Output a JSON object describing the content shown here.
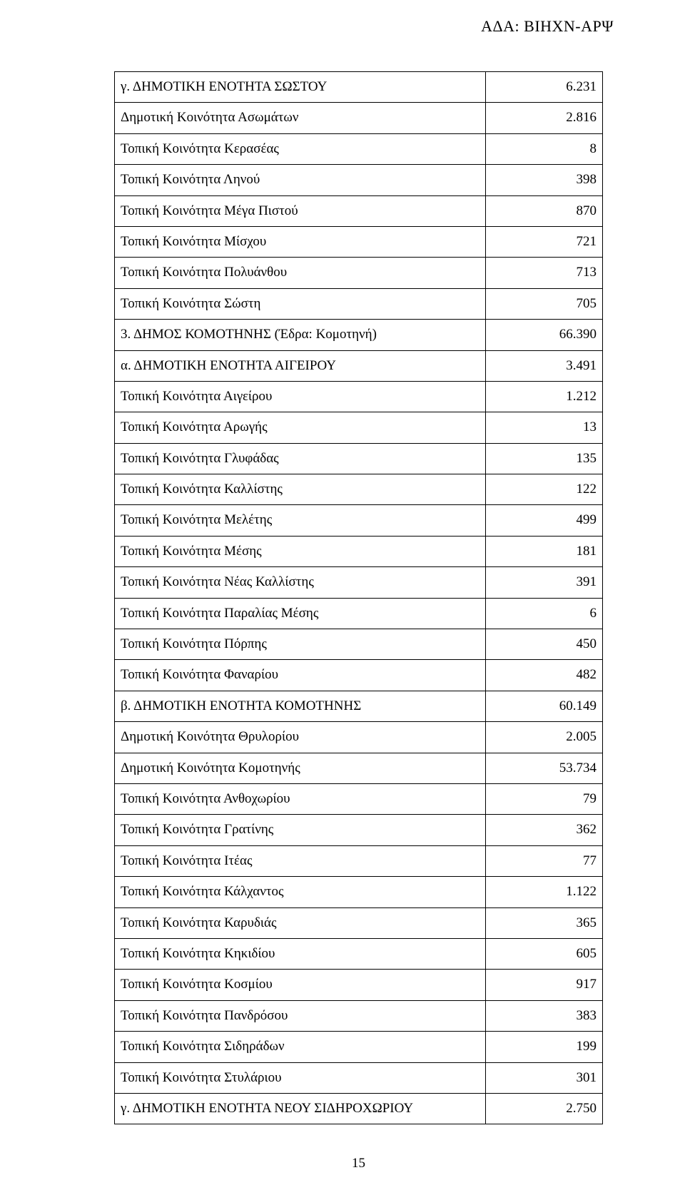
{
  "header_code": "ΑΔΑ: ΒΙΗΧΝ-ΑΡΨ",
  "page_number": "15",
  "table": {
    "rows": [
      {
        "label": "γ. ΔΗΜΟΤΙΚΗ ΕΝΟΤΗΤΑ ΣΩΣΤΟΥ",
        "value": "6.231"
      },
      {
        "label": "Δημοτική Κοινότητα Ασωμάτων",
        "value": "2.816"
      },
      {
        "label": "Τοπική Κοινότητα Κερασέας",
        "value": "8"
      },
      {
        "label": "Τοπική Κοινότητα Ληνού",
        "value": "398"
      },
      {
        "label": "Τοπική Κοινότητα Μέγα Πιστού",
        "value": "870"
      },
      {
        "label": "Τοπική Κοινότητα Μίσχου",
        "value": "721"
      },
      {
        "label": "Τοπική Κοινότητα Πολυάνθου",
        "value": "713"
      },
      {
        "label": "Τοπική Κοινότητα Σώστη",
        "value": "705"
      },
      {
        "label": "3. ΔΗΜΟΣ ΚΟΜΟΤΗΝΗΣ (Έδρα: Κομοτηνή)",
        "value": "66.390"
      },
      {
        "label": "α. ΔΗΜΟΤΙΚΗ ΕΝΟΤΗΤΑ ΑΙΓΕΙΡΟΥ",
        "value": "3.491"
      },
      {
        "label": "Τοπική Κοινότητα Αιγείρου",
        "value": "1.212"
      },
      {
        "label": "Τοπική Κοινότητα Αρωγής",
        "value": "13"
      },
      {
        "label": "Τοπική Κοινότητα Γλυφάδας",
        "value": "135"
      },
      {
        "label": "Τοπική Κοινότητα Καλλίστης",
        "value": "122"
      },
      {
        "label": "Τοπική Κοινότητα Μελέτης",
        "value": "499"
      },
      {
        "label": "Τοπική Κοινότητα Μέσης",
        "value": "181"
      },
      {
        "label": "Τοπική Κοινότητα Νέας Καλλίστης",
        "value": "391"
      },
      {
        "label": "Τοπική Κοινότητα Παραλίας Μέσης",
        "value": "6"
      },
      {
        "label": "Τοπική Κοινότητα Πόρπης",
        "value": "450"
      },
      {
        "label": "Τοπική Κοινότητα Φαναρίου",
        "value": "482"
      },
      {
        "label": "β. ΔΗΜΟΤΙΚΗ ΕΝΟΤΗΤΑ ΚΟΜΟΤΗΝΗΣ",
        "value": "60.149"
      },
      {
        "label": "Δημοτική Κοινότητα Θρυλορίου",
        "value": "2.005"
      },
      {
        "label": "Δημοτική Κοινότητα Κομοτηνής",
        "value": "53.734"
      },
      {
        "label": "Τοπική Κοινότητα Ανθοχωρίου",
        "value": "79"
      },
      {
        "label": "Τοπική Κοινότητα Γρατίνης",
        "value": "362"
      },
      {
        "label": "Τοπική Κοινότητα Ιτέας",
        "value": "77"
      },
      {
        "label": "Τοπική Κοινότητα Κάλχαντος",
        "value": "1.122"
      },
      {
        "label": "Τοπική Κοινότητα Καρυδιάς",
        "value": "365"
      },
      {
        "label": "Τοπική Κοινότητα Κηκιδίου",
        "value": "605"
      },
      {
        "label": "Τοπική Κοινότητα Κοσμίου",
        "value": "917"
      },
      {
        "label": "Τοπική Κοινότητα Πανδρόσου",
        "value": "383"
      },
      {
        "label": "Τοπική Κοινότητα Σιδηράδων",
        "value": "199"
      },
      {
        "label": "Τοπική Κοινότητα Στυλάριου",
        "value": "301"
      },
      {
        "label": "γ. ΔΗΜΟΤΙΚΗ ΕΝΟΤΗΤΑ ΝΕΟΥ ΣΙΔΗΡΟΧΩΡΙΟΥ",
        "value": "2.750"
      }
    ]
  }
}
